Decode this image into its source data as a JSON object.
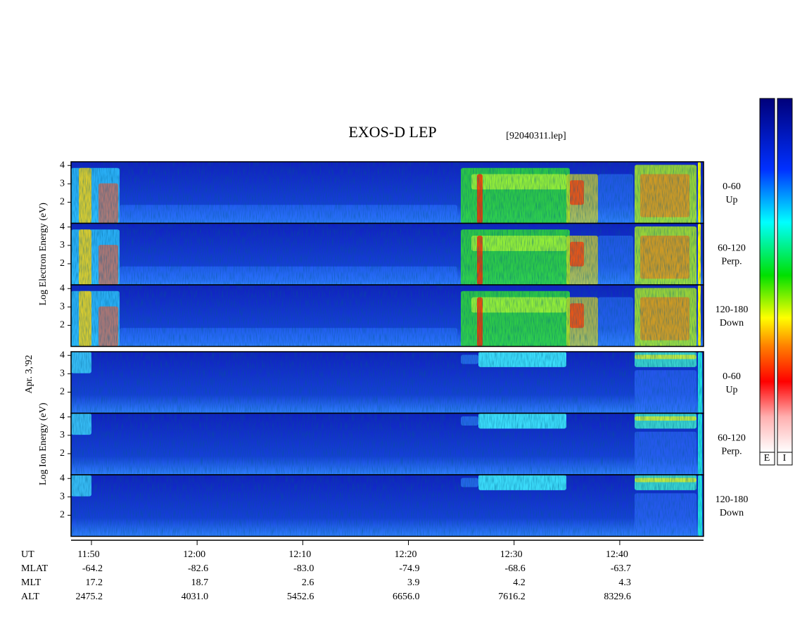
{
  "chart_data": {
    "type": "spectrogram",
    "title": "EXOS-D LEP",
    "subtitle": "[92040311.lep]",
    "date_label": "Apr. 3,'92",
    "ylim": [
      0.85,
      4.2
    ],
    "yticks": [
      2,
      3,
      4
    ],
    "xlim": [
      708.07,
      767.93
    ],
    "xticks": [
      {
        "value": 710,
        "label": "11:50"
      },
      {
        "value": 720,
        "label": "12:00"
      },
      {
        "value": 730,
        "label": "12:10"
      },
      {
        "value": 740,
        "label": "12:20"
      },
      {
        "value": 750,
        "label": "12:30"
      },
      {
        "value": 760,
        "label": "12:40"
      }
    ],
    "groups": [
      {
        "ylabel": "Log Electron Energy (eV)",
        "panels": [
          {
            "angle": "0-60",
            "direction": "Up"
          },
          {
            "angle": "60-120",
            "direction": "Perp."
          },
          {
            "angle": "120-180",
            "direction": "Down"
          }
        ]
      },
      {
        "ylabel": "Log Ion Energy (eV)",
        "panels": [
          {
            "angle": "0-60",
            "direction": "Up"
          },
          {
            "angle": "60-120",
            "direction": "Perp."
          },
          {
            "angle": "120-180",
            "direction": "Down"
          }
        ]
      }
    ],
    "colorbar_labels": [
      "E",
      "I"
    ],
    "orbit_table": {
      "row_labels": [
        "UT",
        "MLAT",
        "MLT",
        "ALT"
      ],
      "rows": [
        [
          "-64.2",
          "-82.6",
          "-83.0",
          "-74.9",
          "-68.6",
          "-63.7"
        ],
        [
          "17.2",
          "18.7",
          "2.6",
          "3.9",
          "4.2",
          "4.3"
        ],
        [
          "2475.2",
          "4031.0",
          "5452.6",
          "6656.0",
          "7616.2",
          "8329.6"
        ]
      ]
    }
  }
}
